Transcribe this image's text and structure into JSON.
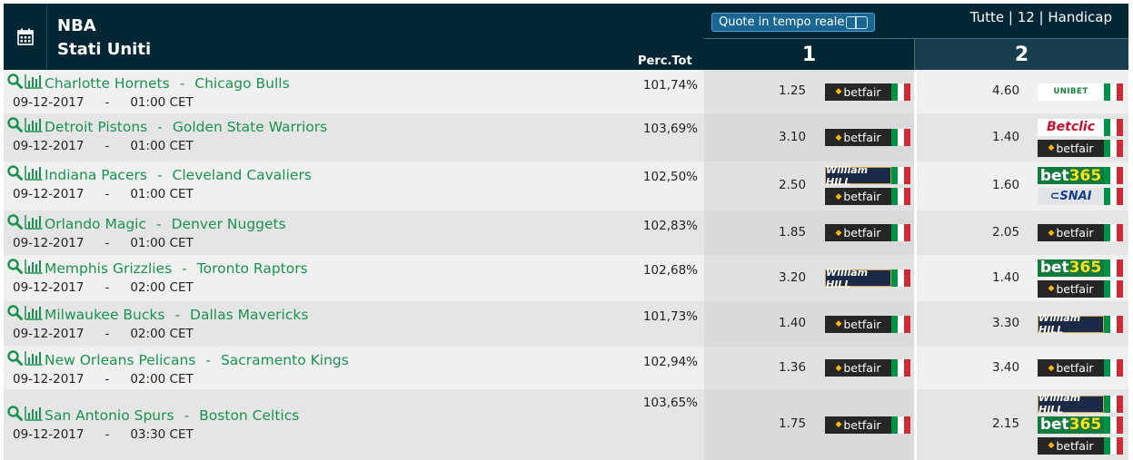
{
  "header": {
    "league": "NBA",
    "country": "Stati Uniti",
    "perc_label": "Perc.Tot",
    "live_button": "Quote in tempo reale",
    "filters": "Tutte | 12 | Handicap",
    "col1": "1",
    "col2": "2"
  },
  "flag_colors": [
    "#009246",
    "#ffffff",
    "#ce2b37"
  ],
  "matches": [
    {
      "home": "Charlotte Hornets",
      "away": "Chicago Bulls",
      "date": "09-12-2017",
      "time": "01:00 CET",
      "perc": "101,74%",
      "odd1": "1.25",
      "odd2": "4.60",
      "bk1": [
        "betfair"
      ],
      "bk2": [
        "unibet"
      ]
    },
    {
      "home": "Detroit Pistons",
      "away": "Golden State Warriors",
      "date": "09-12-2017",
      "time": "01:00 CET",
      "perc": "103,69%",
      "odd1": "3.10",
      "odd2": "1.40",
      "bk1": [
        "betfair"
      ],
      "bk2": [
        "betclic",
        "betfair"
      ]
    },
    {
      "home": "Indiana Pacers",
      "away": "Cleveland Cavaliers",
      "date": "09-12-2017",
      "time": "01:00 CET",
      "perc": "102,50%",
      "odd1": "2.50",
      "odd2": "1.60",
      "bk1": [
        "william hill",
        "betfair"
      ],
      "bk2": [
        "bet365",
        "snai"
      ]
    },
    {
      "home": "Orlando Magic",
      "away": "Denver Nuggets",
      "date": "09-12-2017",
      "time": "01:00 CET",
      "perc": "102,83%",
      "odd1": "1.85",
      "odd2": "2.05",
      "bk1": [
        "betfair"
      ],
      "bk2": [
        "betfair"
      ]
    },
    {
      "home": "Memphis Grizzlies",
      "away": "Toronto Raptors",
      "date": "09-12-2017",
      "time": "02:00 CET",
      "perc": "102,68%",
      "odd1": "3.20",
      "odd2": "1.40",
      "bk1": [
        "william hill"
      ],
      "bk2": [
        "bet365",
        "betfair"
      ]
    },
    {
      "home": "Milwaukee Bucks",
      "away": "Dallas Mavericks",
      "date": "09-12-2017",
      "time": "02:00 CET",
      "perc": "101,73%",
      "odd1": "1.40",
      "odd2": "3.30",
      "bk1": [
        "betfair"
      ],
      "bk2": [
        "william hill"
      ]
    },
    {
      "home": "New Orleans Pelicans",
      "away": "Sacramento Kings",
      "date": "09-12-2017",
      "time": "02:00 CET",
      "perc": "102,94%",
      "odd1": "1.36",
      "odd2": "3.40",
      "bk1": [
        "betfair"
      ],
      "bk2": [
        "betfair"
      ]
    },
    {
      "home": "San Antonio Spurs",
      "away": "Boston Celtics",
      "date": "09-12-2017",
      "time": "03:30 CET",
      "perc": "103,65%",
      "odd1": "1.75",
      "odd2": "2.15",
      "bk1": [
        "betfair"
      ],
      "bk2": [
        "william hill",
        "bet365",
        "betfair"
      ]
    }
  ]
}
